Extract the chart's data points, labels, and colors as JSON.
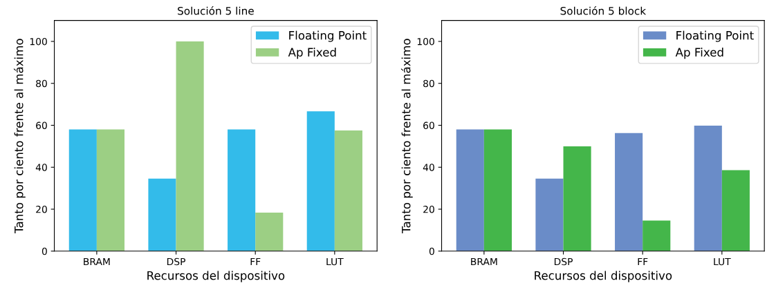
{
  "chart_data": [
    {
      "type": "bar",
      "title": "Solución 5 line",
      "xlabel": "Recursos del dispositivo",
      "ylabel": "Tanto por ciento frente al máximo",
      "categories": [
        "BRAM",
        "DSP",
        "FF",
        "LUT"
      ],
      "series": [
        {
          "name": "Floating Point",
          "color": "#33bbea",
          "values": [
            58,
            34.6,
            58,
            66.7
          ]
        },
        {
          "name": "Ap Fixed",
          "color": "#9ccf84",
          "values": [
            58,
            100,
            18.4,
            57.5
          ]
        }
      ],
      "ylim": [
        0,
        110
      ],
      "yticks": [
        0,
        20,
        40,
        60,
        80,
        100
      ],
      "grid": false,
      "legend": "top right"
    },
    {
      "type": "bar",
      "title": "Solución 5 block",
      "xlabel": "Recursos del dispositivo",
      "ylabel": "Tanto por ciento frente al máximo",
      "categories": [
        "BRAM",
        "DSP",
        "FF",
        "LUT"
      ],
      "series": [
        {
          "name": "Floating Point",
          "color": "#6a8cc8",
          "values": [
            58,
            34.6,
            56.3,
            59.8
          ]
        },
        {
          "name": "Ap Fixed",
          "color": "#44b64a",
          "values": [
            58,
            50,
            14.6,
            38.6
          ]
        }
      ],
      "ylim": [
        0,
        110
      ],
      "yticks": [
        0,
        20,
        40,
        60,
        80,
        100
      ],
      "grid": false,
      "legend": "top right"
    }
  ]
}
